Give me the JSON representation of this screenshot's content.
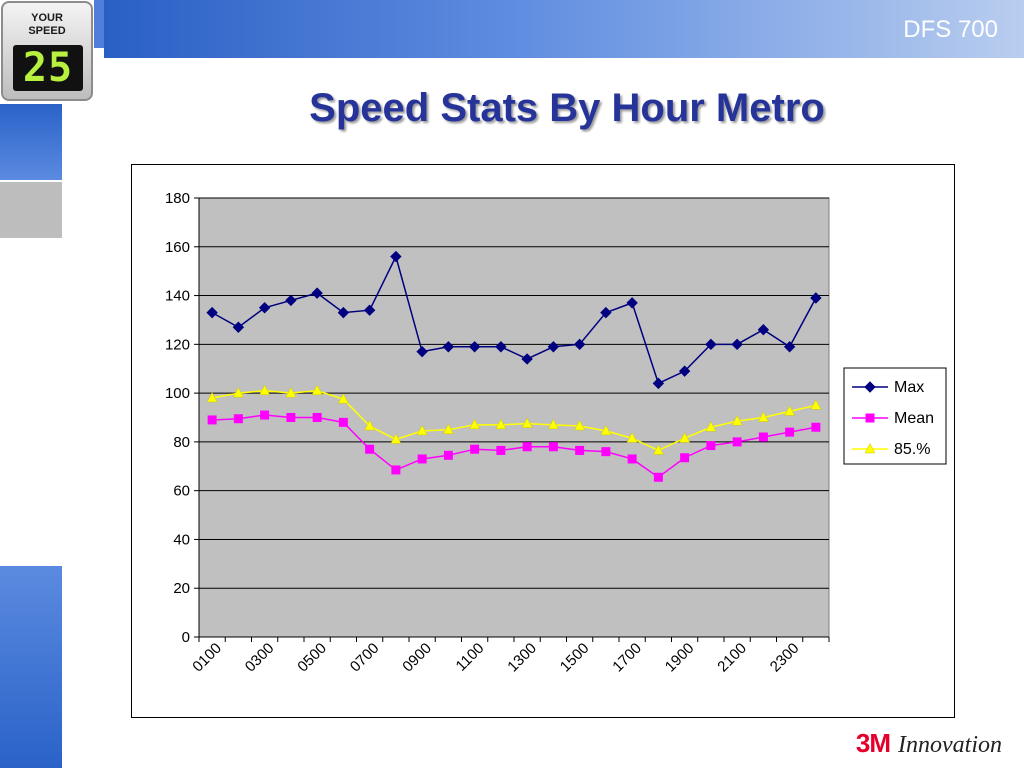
{
  "header": {
    "title": "DFS 700"
  },
  "sign": {
    "line1": "YOUR",
    "line2": "SPEED",
    "display": "25"
  },
  "slide": {
    "title": "Speed Stats By Hour Metro"
  },
  "footer": {
    "brand": "3M",
    "tagline": "Innovation"
  },
  "colors": {
    "plot_bg": "#c0c0c0",
    "max": "#000080",
    "mean": "#ff00ff",
    "p85": "#ffff00",
    "title": "#26349a"
  },
  "chart_data": {
    "type": "line",
    "title": "",
    "xlabel": "",
    "ylabel": "",
    "ylim": [
      0,
      180
    ],
    "yticks": [
      0,
      20,
      40,
      60,
      80,
      100,
      120,
      140,
      160,
      180
    ],
    "grid": true,
    "legend_position": "right",
    "categories": [
      "0100",
      "0200",
      "0300",
      "0400",
      "0500",
      "0600",
      "0700",
      "0800",
      "0900",
      "1000",
      "1100",
      "1200",
      "1300",
      "1400",
      "1500",
      "1600",
      "1700",
      "1800",
      "1900",
      "2000",
      "2100",
      "2200",
      "2300",
      "2400"
    ],
    "xtick_labels": [
      "0100",
      "0300",
      "0500",
      "0700",
      "0900",
      "1100",
      "1300",
      "1500",
      "1700",
      "1900",
      "2100",
      "2300"
    ],
    "series": [
      {
        "name": "Max",
        "color": "#000080",
        "marker": "diamond",
        "values": [
          133,
          127,
          135,
          138,
          141,
          133,
          134,
          156,
          117,
          119,
          119,
          119,
          114,
          119,
          120,
          133,
          137,
          104,
          109,
          120,
          120,
          126,
          119,
          139
        ]
      },
      {
        "name": "Mean",
        "color": "#ff00ff",
        "marker": "square",
        "values": [
          89,
          89.5,
          91,
          90,
          90,
          88,
          77,
          68.5,
          73,
          74.5,
          77,
          76.5,
          78,
          78,
          76.5,
          76,
          73,
          65.5,
          73.5,
          78.5,
          80,
          82,
          84,
          86
        ]
      },
      {
        "name": "85.%",
        "color": "#ffff00",
        "marker": "triangle",
        "values": [
          98,
          100,
          101,
          100,
          101,
          97.5,
          86.5,
          81,
          84.5,
          85,
          87,
          87,
          87.5,
          87,
          86.5,
          84.5,
          81.5,
          76.5,
          81.5,
          86,
          88.5,
          90,
          92.5,
          95
        ]
      }
    ]
  }
}
